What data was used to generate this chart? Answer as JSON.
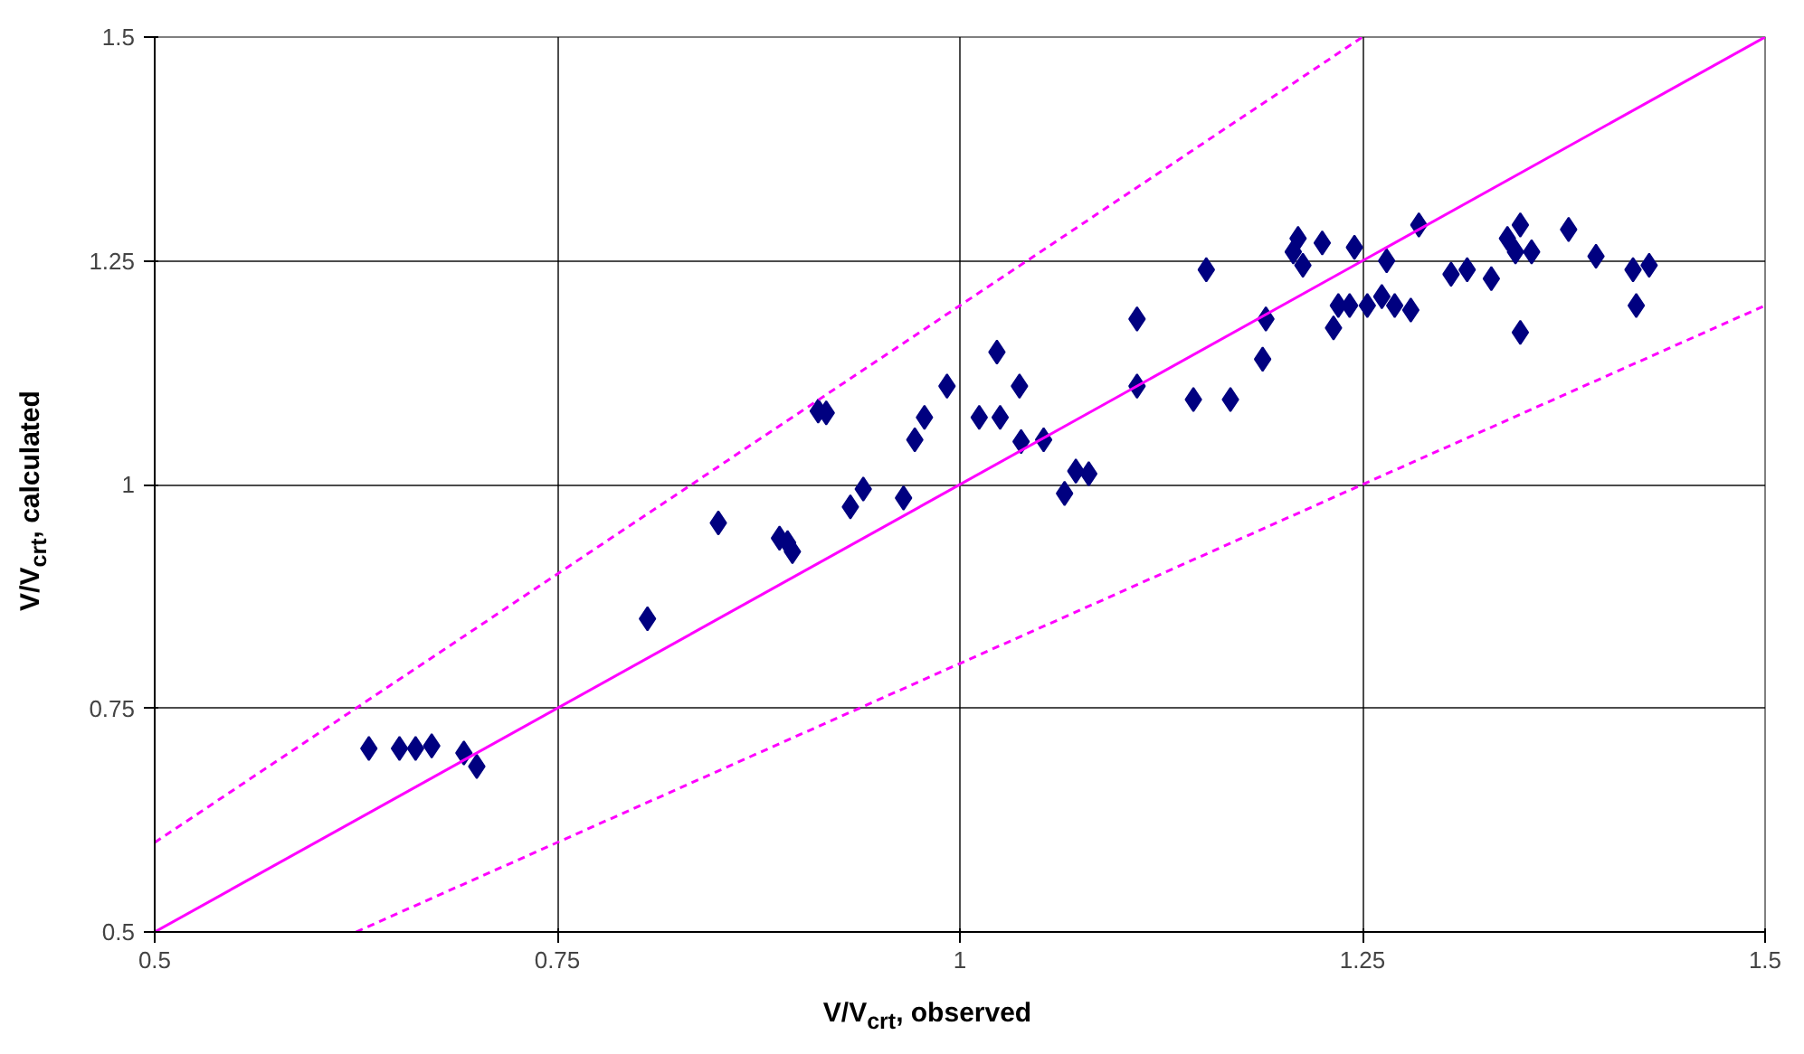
{
  "chart_data": {
    "type": "scatter",
    "xlabel": "V/V$_{crt}$, observed",
    "ylabel": "V/V$_{crt}$, calculated",
    "xlim": [
      0.5,
      1.5
    ],
    "ylim": [
      0.5,
      1.5
    ],
    "xticks": [
      0.5,
      0.75,
      1,
      1.25,
      1.5
    ],
    "yticks": [
      0.5,
      0.75,
      1,
      1.25,
      1.5
    ],
    "grid": true,
    "marker": "diamond",
    "series": [
      {
        "color": "#000080",
        "x": [
          0.633,
          0.652,
          0.662,
          0.672,
          0.692,
          0.7,
          0.806,
          0.85,
          0.888,
          0.893,
          0.896,
          0.932,
          0.94,
          0.912,
          0.917,
          0.965,
          0.972,
          0.978,
          0.992,
          1.012,
          1.023,
          1.025,
          1.037,
          1.038,
          1.052,
          1.065,
          1.072,
          1.08,
          1.11,
          1.11,
          1.145,
          1.153,
          1.168,
          1.188,
          1.19,
          1.207,
          1.21,
          1.213,
          1.225,
          1.232,
          1.235,
          1.242,
          1.245,
          1.253,
          1.262,
          1.265,
          1.27,
          1.28,
          1.285,
          1.305,
          1.315,
          1.33,
          1.34,
          1.345,
          1.348,
          1.348,
          1.355,
          1.378,
          1.395,
          1.418,
          1.42,
          1.428
        ],
        "values": [
          0.705,
          0.705,
          0.705,
          0.708,
          0.7,
          0.685,
          0.85,
          0.957,
          0.94,
          0.935,
          0.925,
          0.975,
          0.995,
          1.082,
          1.08,
          0.985,
          1.05,
          1.075,
          1.11,
          1.075,
          1.148,
          1.075,
          1.11,
          1.048,
          1.05,
          0.99,
          1.015,
          1.012,
          1.11,
          1.185,
          1.095,
          1.24,
          1.095,
          1.14,
          1.185,
          1.26,
          1.275,
          1.245,
          1.27,
          1.175,
          1.2,
          1.2,
          1.265,
          1.2,
          1.21,
          1.25,
          1.2,
          1.195,
          1.29,
          1.235,
          1.24,
          1.23,
          1.275,
          1.26,
          1.29,
          1.17,
          1.26,
          1.285,
          1.255,
          1.24,
          1.2,
          1.245
        ]
      },
      {
        "type": "line",
        "color": "#ff00ff",
        "line_style": "solid",
        "marker": "none",
        "x": [
          0.5,
          1.5
        ],
        "values": [
          0.5,
          1.5
        ]
      },
      {
        "type": "line",
        "color": "#ff00ff",
        "line_style": "dashed",
        "marker": "none",
        "x": [
          0.5,
          1.25
        ],
        "values": [
          0.6,
          1.5
        ]
      },
      {
        "type": "line",
        "color": "#ff00ff",
        "line_style": "dashed",
        "marker": "none",
        "x": [
          0.625,
          1.5
        ],
        "values": [
          0.5,
          1.2
        ]
      }
    ]
  }
}
